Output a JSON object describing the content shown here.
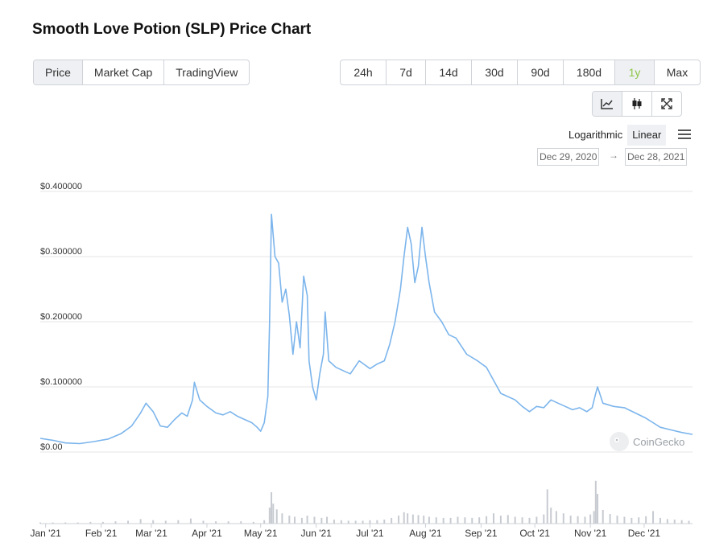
{
  "page_title": "Smooth Love Potion (SLP) Price Chart",
  "tabs": [
    {
      "label": "Price",
      "active": true
    },
    {
      "label": "Market Cap",
      "active": false
    },
    {
      "label": "TradingView",
      "active": false
    }
  ],
  "ranges": [
    {
      "label": "24h",
      "active": false
    },
    {
      "label": "7d",
      "active": false
    },
    {
      "label": "14d",
      "active": false
    },
    {
      "label": "30d",
      "active": false
    },
    {
      "label": "90d",
      "active": false
    },
    {
      "label": "180d",
      "active": false
    },
    {
      "label": "1y",
      "active": true
    },
    {
      "label": "Max",
      "active": false
    }
  ],
  "chart_styles": [
    {
      "icon": "line-chart-icon",
      "active": true
    },
    {
      "icon": "candlestick-icon",
      "active": false
    },
    {
      "icon": "expand-icon",
      "active": false
    }
  ],
  "scale": {
    "logarithmic_label": "Logarithmic",
    "linear_label": "Linear",
    "selected": "Linear"
  },
  "date_range": {
    "from": "Dec 29, 2020",
    "arrow": "→",
    "to": "Dec 28, 2021"
  },
  "watermark": "CoinGecko",
  "colors": {
    "line": "#7cb5ec",
    "volume": "#c7cbd1",
    "accent_green": "#8dc647",
    "grid": "#e6e6e6"
  },
  "chart_data": {
    "type": "line",
    "title": "",
    "xlabel": "",
    "ylabel": "",
    "ylim": [
      0,
      0.4
    ],
    "xlim": [
      "2020-12-29",
      "2021-12-28"
    ],
    "y_ticks": [
      {
        "value": 0,
        "label": "$0.00"
      },
      {
        "value": 0.1,
        "label": "$0.100000"
      },
      {
        "value": 0.2,
        "label": "$0.200000"
      },
      {
        "value": 0.3,
        "label": "$0.300000"
      },
      {
        "value": 0.4,
        "label": "$0.400000"
      }
    ],
    "x_ticks": [
      {
        "date": "2021-01-01",
        "label": "Jan '21"
      },
      {
        "date": "2021-02-01",
        "label": "Feb '21"
      },
      {
        "date": "2021-03-01",
        "label": "Mar '21"
      },
      {
        "date": "2021-04-01",
        "label": "Apr '21"
      },
      {
        "date": "2021-05-01",
        "label": "May '21"
      },
      {
        "date": "2021-06-01",
        "label": "Jun '21"
      },
      {
        "date": "2021-07-01",
        "label": "Jul '21"
      },
      {
        "date": "2021-08-01",
        "label": "Aug '21"
      },
      {
        "date": "2021-09-01",
        "label": "Sep '21"
      },
      {
        "date": "2021-10-01",
        "label": "Oct '21"
      },
      {
        "date": "2021-11-01",
        "label": "Nov '21"
      },
      {
        "date": "2021-12-01",
        "label": "Dec '21"
      }
    ],
    "legend": "none",
    "grid": true,
    "series": [
      {
        "points": [
          [
            "2020-12-29",
            0.021
          ],
          [
            "2021-01-05",
            0.018
          ],
          [
            "2021-01-12",
            0.014
          ],
          [
            "2021-01-20",
            0.013
          ],
          [
            "2021-01-28",
            0.016
          ],
          [
            "2021-02-05",
            0.02
          ],
          [
            "2021-02-12",
            0.028
          ],
          [
            "2021-02-18",
            0.04
          ],
          [
            "2021-02-23",
            0.06
          ],
          [
            "2021-02-26",
            0.075
          ],
          [
            "2021-03-02",
            0.062
          ],
          [
            "2021-03-06",
            0.04
          ],
          [
            "2021-03-10",
            0.038
          ],
          [
            "2021-03-14",
            0.05
          ],
          [
            "2021-03-18",
            0.06
          ],
          [
            "2021-03-21",
            0.055
          ],
          [
            "2021-03-24",
            0.08
          ],
          [
            "2021-03-25",
            0.107
          ],
          [
            "2021-03-28",
            0.08
          ],
          [
            "2021-04-01",
            0.07
          ],
          [
            "2021-04-06",
            0.06
          ],
          [
            "2021-04-10",
            0.057
          ],
          [
            "2021-04-14",
            0.062
          ],
          [
            "2021-04-18",
            0.055
          ],
          [
            "2021-04-22",
            0.05
          ],
          [
            "2021-04-26",
            0.045
          ],
          [
            "2021-04-29",
            0.038
          ],
          [
            "2021-05-01",
            0.032
          ],
          [
            "2021-05-03",
            0.045
          ],
          [
            "2021-05-05",
            0.085
          ],
          [
            "2021-05-06",
            0.2
          ],
          [
            "2021-05-07",
            0.365
          ],
          [
            "2021-05-09",
            0.3
          ],
          [
            "2021-05-11",
            0.29
          ],
          [
            "2021-05-13",
            0.23
          ],
          [
            "2021-05-15",
            0.25
          ],
          [
            "2021-05-17",
            0.21
          ],
          [
            "2021-05-19",
            0.15
          ],
          [
            "2021-05-21",
            0.2
          ],
          [
            "2021-05-23",
            0.16
          ],
          [
            "2021-05-25",
            0.27
          ],
          [
            "2021-05-27",
            0.24
          ],
          [
            "2021-05-28",
            0.14
          ],
          [
            "2021-05-30",
            0.1
          ],
          [
            "2021-06-01",
            0.08
          ],
          [
            "2021-06-03",
            0.12
          ],
          [
            "2021-06-05",
            0.15
          ],
          [
            "2021-06-06",
            0.215
          ],
          [
            "2021-06-08",
            0.14
          ],
          [
            "2021-06-12",
            0.13
          ],
          [
            "2021-06-16",
            0.125
          ],
          [
            "2021-06-20",
            0.12
          ],
          [
            "2021-06-25",
            0.14
          ],
          [
            "2021-07-01",
            0.128
          ],
          [
            "2021-07-05",
            0.135
          ],
          [
            "2021-07-09",
            0.14
          ],
          [
            "2021-07-12",
            0.165
          ],
          [
            "2021-07-15",
            0.2
          ],
          [
            "2021-07-18",
            0.25
          ],
          [
            "2021-07-20",
            0.3
          ],
          [
            "2021-07-22",
            0.345
          ],
          [
            "2021-07-24",
            0.32
          ],
          [
            "2021-07-26",
            0.26
          ],
          [
            "2021-07-28",
            0.285
          ],
          [
            "2021-07-30",
            0.345
          ],
          [
            "2021-08-01",
            0.3
          ],
          [
            "2021-08-03",
            0.26
          ],
          [
            "2021-08-06",
            0.215
          ],
          [
            "2021-08-10",
            0.2
          ],
          [
            "2021-08-14",
            0.18
          ],
          [
            "2021-08-18",
            0.175
          ],
          [
            "2021-08-24",
            0.15
          ],
          [
            "2021-08-30",
            0.14
          ],
          [
            "2021-09-04",
            0.13
          ],
          [
            "2021-09-08",
            0.11
          ],
          [
            "2021-09-12",
            0.09
          ],
          [
            "2021-09-16",
            0.085
          ],
          [
            "2021-09-20",
            0.08
          ],
          [
            "2021-09-24",
            0.07
          ],
          [
            "2021-09-28",
            0.062
          ],
          [
            "2021-10-02",
            0.07
          ],
          [
            "2021-10-06",
            0.068
          ],
          [
            "2021-10-10",
            0.08
          ],
          [
            "2021-10-14",
            0.075
          ],
          [
            "2021-10-18",
            0.07
          ],
          [
            "2021-10-22",
            0.065
          ],
          [
            "2021-10-26",
            0.068
          ],
          [
            "2021-10-30",
            0.062
          ],
          [
            "2021-11-02",
            0.068
          ],
          [
            "2021-11-04",
            0.09
          ],
          [
            "2021-11-05",
            0.1
          ],
          [
            "2021-11-08",
            0.075
          ],
          [
            "2021-11-14",
            0.07
          ],
          [
            "2021-11-20",
            0.068
          ],
          [
            "2021-11-26",
            0.06
          ],
          [
            "2021-12-02",
            0.052
          ],
          [
            "2021-12-06",
            0.045
          ],
          [
            "2021-12-10",
            0.038
          ],
          [
            "2021-12-16",
            0.034
          ],
          [
            "2021-12-22",
            0.03
          ],
          [
            "2021-12-28",
            0.027
          ]
        ]
      }
    ],
    "volume": {
      "ylim": [
        0,
        1
      ],
      "bars": [
        [
          "2020-12-29",
          0.02
        ],
        [
          "2021-01-05",
          0.02
        ],
        [
          "2021-01-12",
          0.02
        ],
        [
          "2021-01-19",
          0.02
        ],
        [
          "2021-01-26",
          0.03
        ],
        [
          "2021-02-02",
          0.03
        ],
        [
          "2021-02-09",
          0.04
        ],
        [
          "2021-02-16",
          0.05
        ],
        [
          "2021-02-23",
          0.08
        ],
        [
          "2021-03-02",
          0.06
        ],
        [
          "2021-03-09",
          0.05
        ],
        [
          "2021-03-16",
          0.06
        ],
        [
          "2021-03-23",
          0.09
        ],
        [
          "2021-03-30",
          0.05
        ],
        [
          "2021-04-06",
          0.04
        ],
        [
          "2021-04-13",
          0.04
        ],
        [
          "2021-04-20",
          0.04
        ],
        [
          "2021-04-27",
          0.03
        ],
        [
          "2021-05-03",
          0.06
        ],
        [
          "2021-05-06",
          0.28
        ],
        [
          "2021-05-07",
          0.55
        ],
        [
          "2021-05-08",
          0.35
        ],
        [
          "2021-05-10",
          0.25
        ],
        [
          "2021-05-13",
          0.18
        ],
        [
          "2021-05-17",
          0.14
        ],
        [
          "2021-05-20",
          0.12
        ],
        [
          "2021-05-24",
          0.1
        ],
        [
          "2021-05-27",
          0.14
        ],
        [
          "2021-05-31",
          0.12
        ],
        [
          "2021-06-04",
          0.1
        ],
        [
          "2021-06-07",
          0.12
        ],
        [
          "2021-06-11",
          0.07
        ],
        [
          "2021-06-15",
          0.06
        ],
        [
          "2021-06-19",
          0.05
        ],
        [
          "2021-06-23",
          0.05
        ],
        [
          "2021-06-27",
          0.05
        ],
        [
          "2021-07-01",
          0.06
        ],
        [
          "2021-07-05",
          0.06
        ],
        [
          "2021-07-09",
          0.07
        ],
        [
          "2021-07-13",
          0.1
        ],
        [
          "2021-07-17",
          0.14
        ],
        [
          "2021-07-20",
          0.2
        ],
        [
          "2021-07-22",
          0.18
        ],
        [
          "2021-07-25",
          0.16
        ],
        [
          "2021-07-28",
          0.15
        ],
        [
          "2021-07-31",
          0.14
        ],
        [
          "2021-08-03",
          0.12
        ],
        [
          "2021-08-07",
          0.11
        ],
        [
          "2021-08-11",
          0.1
        ],
        [
          "2021-08-15",
          0.1
        ],
        [
          "2021-08-19",
          0.12
        ],
        [
          "2021-08-23",
          0.11
        ],
        [
          "2021-08-27",
          0.1
        ],
        [
          "2021-08-31",
          0.11
        ],
        [
          "2021-09-04",
          0.13
        ],
        [
          "2021-09-08",
          0.18
        ],
        [
          "2021-09-12",
          0.14
        ],
        [
          "2021-09-16",
          0.15
        ],
        [
          "2021-09-20",
          0.12
        ],
        [
          "2021-09-24",
          0.11
        ],
        [
          "2021-09-28",
          0.1
        ],
        [
          "2021-10-02",
          0.12
        ],
        [
          "2021-10-06",
          0.16
        ],
        [
          "2021-10-08",
          0.6
        ],
        [
          "2021-10-10",
          0.28
        ],
        [
          "2021-10-13",
          0.22
        ],
        [
          "2021-10-17",
          0.18
        ],
        [
          "2021-10-21",
          0.14
        ],
        [
          "2021-10-25",
          0.13
        ],
        [
          "2021-10-29",
          0.12
        ],
        [
          "2021-11-01",
          0.16
        ],
        [
          "2021-11-03",
          0.22
        ],
        [
          "2021-11-04",
          0.75
        ],
        [
          "2021-11-05",
          0.52
        ],
        [
          "2021-11-08",
          0.24
        ],
        [
          "2021-11-12",
          0.17
        ],
        [
          "2021-11-16",
          0.14
        ],
        [
          "2021-11-20",
          0.12
        ],
        [
          "2021-11-24",
          0.1
        ],
        [
          "2021-11-28",
          0.11
        ],
        [
          "2021-12-02",
          0.13
        ],
        [
          "2021-12-06",
          0.22
        ],
        [
          "2021-12-10",
          0.1
        ],
        [
          "2021-12-14",
          0.08
        ],
        [
          "2021-12-18",
          0.07
        ],
        [
          "2021-12-22",
          0.06
        ],
        [
          "2021-12-26",
          0.05
        ]
      ]
    }
  }
}
